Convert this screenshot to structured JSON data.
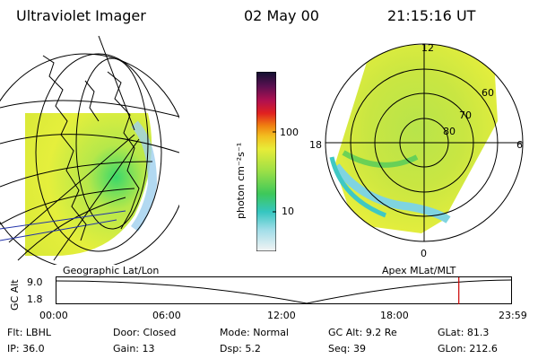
{
  "header": {
    "instrument": "Ultraviolet Imager",
    "date": "02 May 00",
    "time": "21:15:16 UT"
  },
  "left_panel": {
    "caption": "Geographic Lat/Lon"
  },
  "right_panel": {
    "caption": "Apex MLat/MLT",
    "lat_labels": [
      "60",
      "70",
      "80"
    ],
    "mlt_labels": {
      "top": "12",
      "left": "18",
      "right": "6",
      "bottom": "0"
    }
  },
  "colorbar": {
    "unit_label": "photon cm⁻²s⁻¹",
    "ticks": [
      "100",
      "10"
    ]
  },
  "altitude_strip": {
    "ylabel": "GC Alt",
    "yticks": [
      "9.0",
      "1.8"
    ],
    "xticks": [
      "00:00",
      "06:00",
      "12:00",
      "18:00",
      "23:59"
    ],
    "marker_time_fraction": 0.885,
    "marker_color": "#cc0000"
  },
  "info": {
    "row1": [
      {
        "label": "Flt:",
        "value": "LBHL"
      },
      {
        "label": "Door:",
        "value": "Closed"
      },
      {
        "label": "Mode:",
        "value": "Normal"
      },
      {
        "label": "GC Alt:",
        "value": "9.2 Re"
      },
      {
        "label": "GLat:",
        "value": "81.3"
      }
    ],
    "row2": [
      {
        "label": "IP:",
        "value": "36.0"
      },
      {
        "label": "Gain:",
        "value": "13"
      },
      {
        "label": "Dsp:",
        "value": "5.2"
      },
      {
        "label": "Seq:",
        "value": "39"
      },
      {
        "label": "GLon:",
        "value": "212.6"
      }
    ]
  }
}
